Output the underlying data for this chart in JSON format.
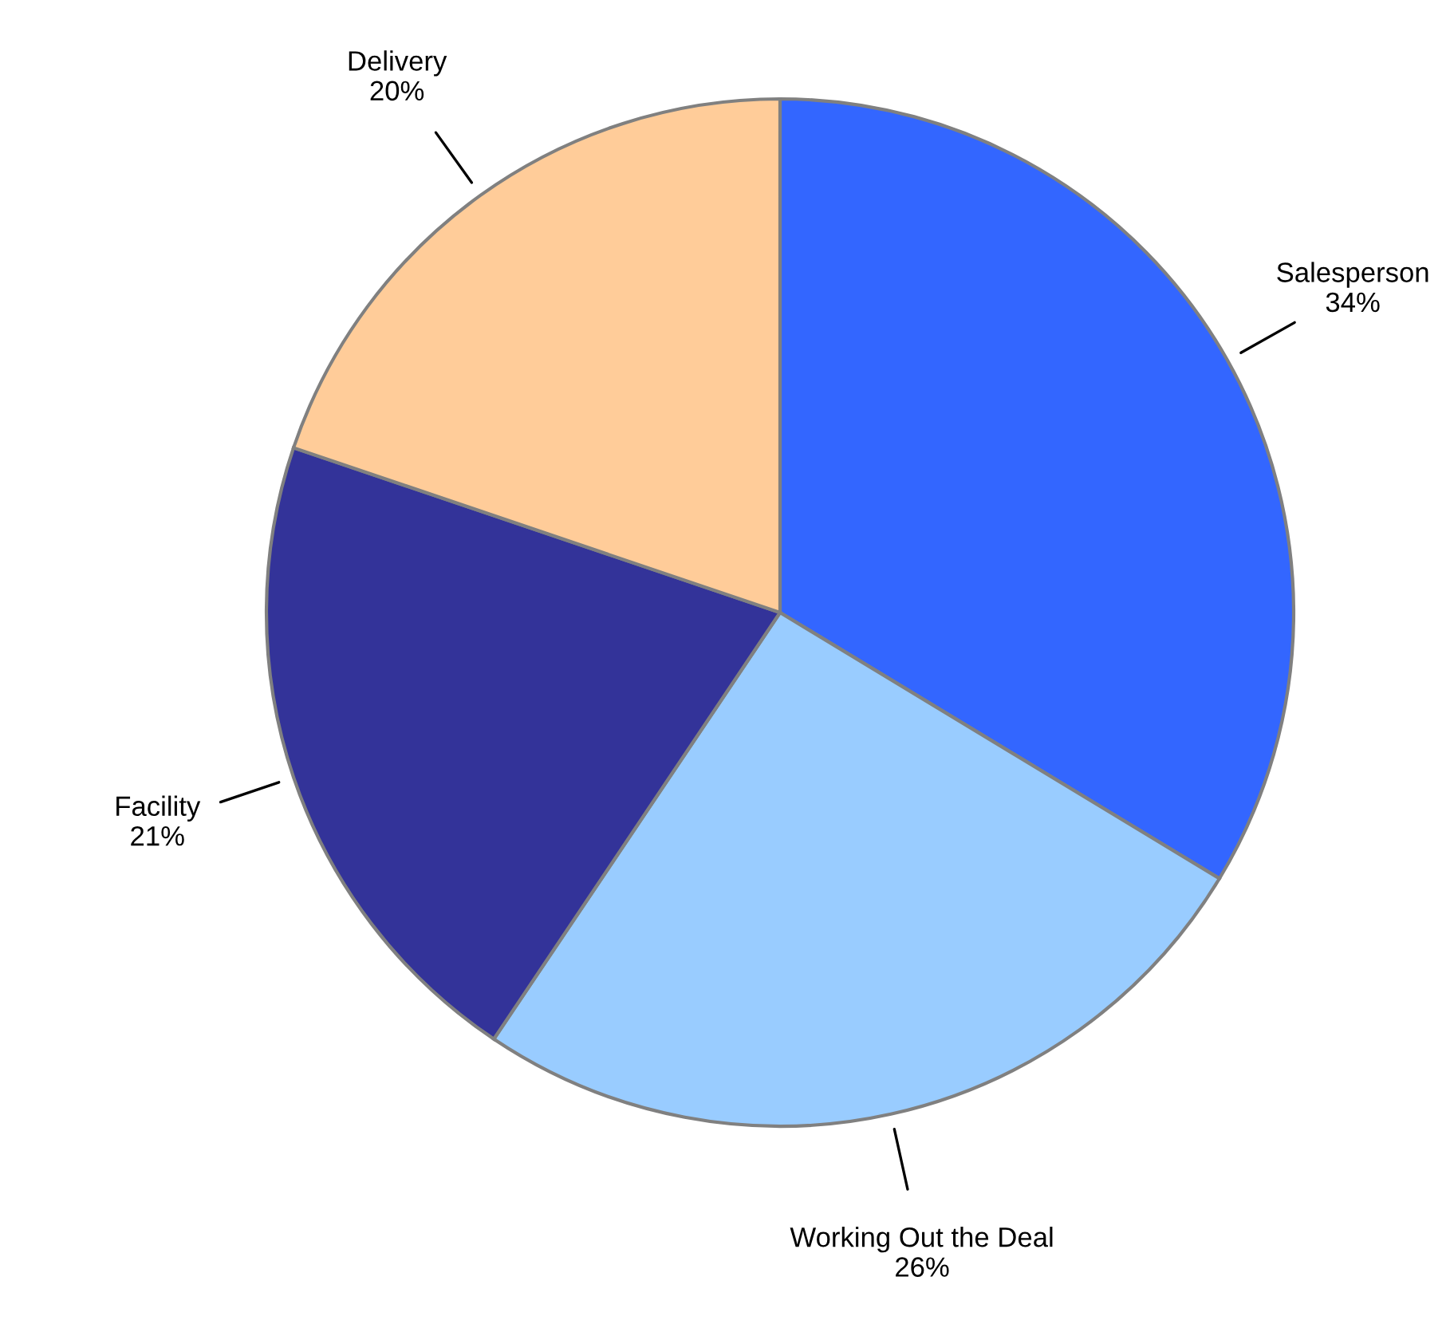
{
  "chart_data": {
    "type": "pie",
    "categories": [
      "Salesperson",
      "Working Out the Deal",
      "Facility",
      "Delivery"
    ],
    "values": [
      34,
      26,
      21,
      20
    ],
    "value_labels": [
      "34%",
      "26%",
      "21%",
      "20%"
    ],
    "colors": [
      "#3366ff",
      "#99ccff",
      "#333399",
      "#ffcc99"
    ]
  }
}
